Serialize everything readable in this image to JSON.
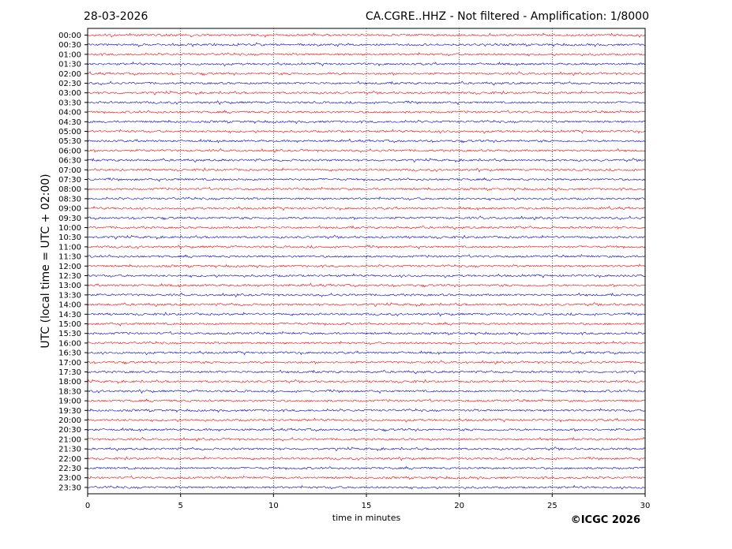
{
  "header": {
    "date": "28-03-2026",
    "title": "CA.CGRE..HHZ - Not filtered - Amplification: 1/8000"
  },
  "copyright": "©ICGC 2026",
  "colors": {
    "trace_a": "#ff0000",
    "trace_b": "#0000cc",
    "grid": "#000000",
    "background": "#ffffff"
  },
  "chart_data": {
    "type": "line",
    "title": "CA.CGRE..HHZ - Not filtered - Amplification: 1/8000",
    "xlabel": "time in minutes",
    "ylabel": "UTC (local time = UTC + 02:00)",
    "xlim": [
      0,
      30
    ],
    "x_ticks": [
      "0",
      "5",
      "10",
      "15",
      "20",
      "25",
      "30"
    ],
    "x_tick_values": [
      0,
      5,
      10,
      15,
      20,
      25,
      30
    ],
    "grid": true,
    "grid_style": "dotted vertical",
    "series_colors_alternating": [
      "red",
      "blue"
    ],
    "rows": [
      "00:00",
      "00:30",
      "01:00",
      "01:30",
      "02:00",
      "02:30",
      "03:00",
      "03:30",
      "04:00",
      "04:30",
      "05:00",
      "05:30",
      "06:00",
      "06:30",
      "07:00",
      "07:30",
      "08:00",
      "08:30",
      "09:00",
      "09:30",
      "10:00",
      "10:30",
      "11:00",
      "11:30",
      "12:00",
      "12:30",
      "13:00",
      "13:30",
      "14:00",
      "14:30",
      "15:00",
      "15:30",
      "16:00",
      "16:30",
      "17:00",
      "17:30",
      "18:00",
      "18:30",
      "19:00",
      "19:30",
      "20:00",
      "20:30",
      "21:00",
      "21:30",
      "22:00",
      "22:30",
      "23:00",
      "23:30"
    ]
  }
}
